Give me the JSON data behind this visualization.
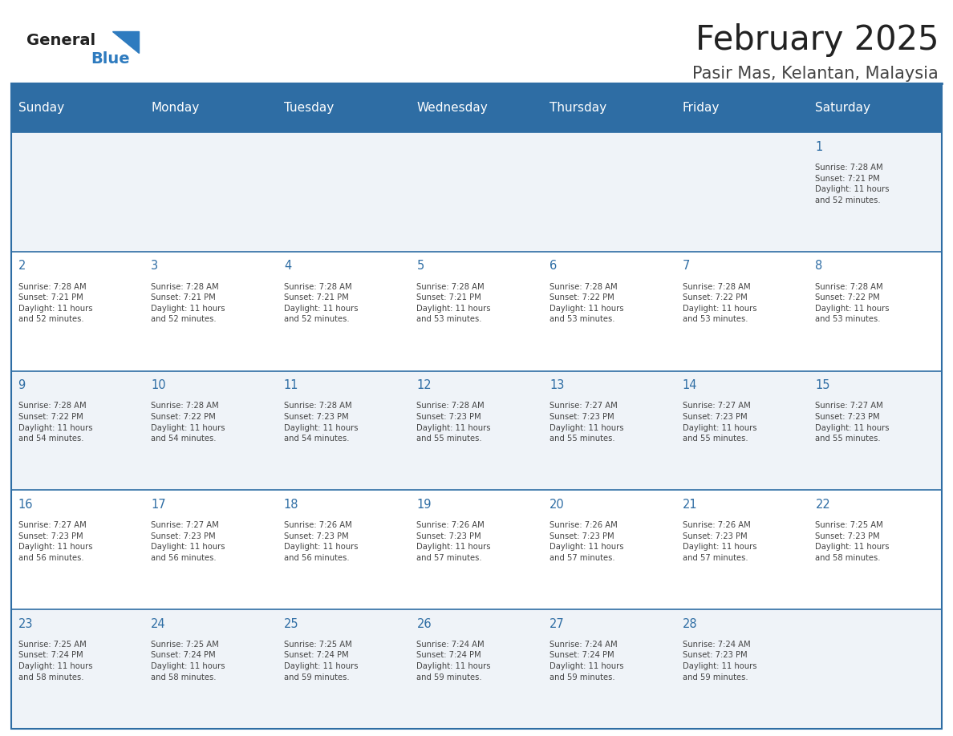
{
  "title": "February 2025",
  "subtitle": "Pasir Mas, Kelantan, Malaysia",
  "days_of_week": [
    "Sunday",
    "Monday",
    "Tuesday",
    "Wednesday",
    "Thursday",
    "Friday",
    "Saturday"
  ],
  "header_bg": "#2e6da4",
  "header_text": "#ffffff",
  "border_color": "#2e6da4",
  "day_num_color": "#2e6da4",
  "info_color": "#444444",
  "title_color": "#222222",
  "subtitle_color": "#444444",
  "logo_general_color": "#222222",
  "logo_blue_color": "#2e7bbf",
  "weeks": [
    [
      null,
      null,
      null,
      null,
      null,
      null,
      1
    ],
    [
      2,
      3,
      4,
      5,
      6,
      7,
      8
    ],
    [
      9,
      10,
      11,
      12,
      13,
      14,
      15
    ],
    [
      16,
      17,
      18,
      19,
      20,
      21,
      22
    ],
    [
      23,
      24,
      25,
      26,
      27,
      28,
      null
    ]
  ],
  "sunrise_data": {
    "1": "Sunrise: 7:28 AM\nSunset: 7:21 PM\nDaylight: 11 hours\nand 52 minutes.",
    "2": "Sunrise: 7:28 AM\nSunset: 7:21 PM\nDaylight: 11 hours\nand 52 minutes.",
    "3": "Sunrise: 7:28 AM\nSunset: 7:21 PM\nDaylight: 11 hours\nand 52 minutes.",
    "4": "Sunrise: 7:28 AM\nSunset: 7:21 PM\nDaylight: 11 hours\nand 52 minutes.",
    "5": "Sunrise: 7:28 AM\nSunset: 7:21 PM\nDaylight: 11 hours\nand 53 minutes.",
    "6": "Sunrise: 7:28 AM\nSunset: 7:22 PM\nDaylight: 11 hours\nand 53 minutes.",
    "7": "Sunrise: 7:28 AM\nSunset: 7:22 PM\nDaylight: 11 hours\nand 53 minutes.",
    "8": "Sunrise: 7:28 AM\nSunset: 7:22 PM\nDaylight: 11 hours\nand 53 minutes.",
    "9": "Sunrise: 7:28 AM\nSunset: 7:22 PM\nDaylight: 11 hours\nand 54 minutes.",
    "10": "Sunrise: 7:28 AM\nSunset: 7:22 PM\nDaylight: 11 hours\nand 54 minutes.",
    "11": "Sunrise: 7:28 AM\nSunset: 7:23 PM\nDaylight: 11 hours\nand 54 minutes.",
    "12": "Sunrise: 7:28 AM\nSunset: 7:23 PM\nDaylight: 11 hours\nand 55 minutes.",
    "13": "Sunrise: 7:27 AM\nSunset: 7:23 PM\nDaylight: 11 hours\nand 55 minutes.",
    "14": "Sunrise: 7:27 AM\nSunset: 7:23 PM\nDaylight: 11 hours\nand 55 minutes.",
    "15": "Sunrise: 7:27 AM\nSunset: 7:23 PM\nDaylight: 11 hours\nand 55 minutes.",
    "16": "Sunrise: 7:27 AM\nSunset: 7:23 PM\nDaylight: 11 hours\nand 56 minutes.",
    "17": "Sunrise: 7:27 AM\nSunset: 7:23 PM\nDaylight: 11 hours\nand 56 minutes.",
    "18": "Sunrise: 7:26 AM\nSunset: 7:23 PM\nDaylight: 11 hours\nand 56 minutes.",
    "19": "Sunrise: 7:26 AM\nSunset: 7:23 PM\nDaylight: 11 hours\nand 57 minutes.",
    "20": "Sunrise: 7:26 AM\nSunset: 7:23 PM\nDaylight: 11 hours\nand 57 minutes.",
    "21": "Sunrise: 7:26 AM\nSunset: 7:23 PM\nDaylight: 11 hours\nand 57 minutes.",
    "22": "Sunrise: 7:25 AM\nSunset: 7:23 PM\nDaylight: 11 hours\nand 58 minutes.",
    "23": "Sunrise: 7:25 AM\nSunset: 7:24 PM\nDaylight: 11 hours\nand 58 minutes.",
    "24": "Sunrise: 7:25 AM\nSunset: 7:24 PM\nDaylight: 11 hours\nand 58 minutes.",
    "25": "Sunrise: 7:25 AM\nSunset: 7:24 PM\nDaylight: 11 hours\nand 59 minutes.",
    "26": "Sunrise: 7:24 AM\nSunset: 7:24 PM\nDaylight: 11 hours\nand 59 minutes.",
    "27": "Sunrise: 7:24 AM\nSunset: 7:24 PM\nDaylight: 11 hours\nand 59 minutes.",
    "28": "Sunrise: 7:24 AM\nSunset: 7:23 PM\nDaylight: 11 hours\nand 59 minutes."
  },
  "figsize": [
    11.88,
    9.18
  ],
  "dpi": 100
}
